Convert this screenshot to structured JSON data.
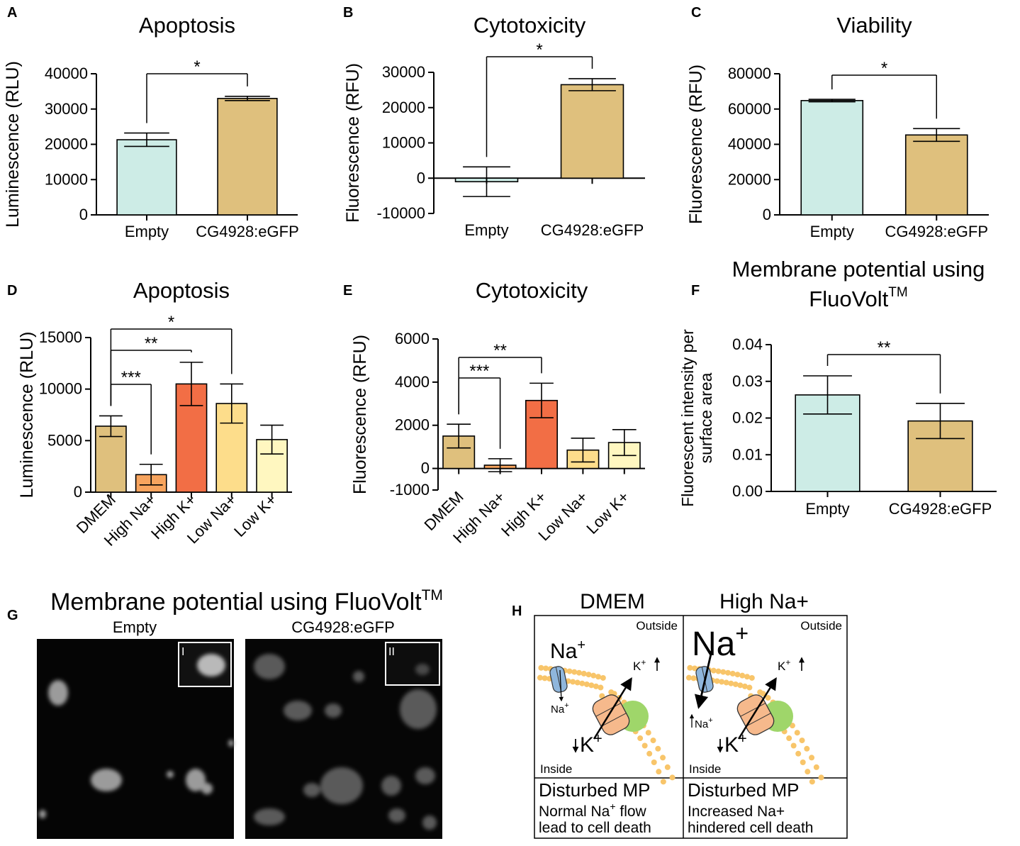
{
  "colors": {
    "empty": "#cdece6",
    "cg": "#dfc07d",
    "dmem": "#dfc07d",
    "high_na": "#f7a45e",
    "high_k": "#f26e45",
    "low_na": "#fddd8b",
    "low_k": "#fff7c0",
    "membrane": "#f8c56a",
    "transporter": "#f6b98c",
    "na_channel": "#8fb6dc",
    "green": "#9fd66a"
  },
  "chart_data": [
    {
      "panel": "A",
      "type": "bar",
      "title": "Apoptosis",
      "ylabel": "Luminescence (RLU)",
      "xlabel": "",
      "ylim": [
        0,
        40000
      ],
      "yticks": [
        0,
        10000,
        20000,
        30000,
        40000
      ],
      "categories": [
        "Empty",
        "CG4928:eGFP"
      ],
      "values": [
        21300,
        33000
      ],
      "errors": [
        1900,
        600
      ],
      "bar_colors": [
        "empty",
        "cg"
      ],
      "rotate_labels": false,
      "significance": [
        {
          "from": 0,
          "to": 1,
          "label": "*"
        }
      ]
    },
    {
      "panel": "B",
      "type": "bar",
      "title": "Cytotoxicity",
      "ylabel": "Fluorescence (RFU)",
      "xlabel": "",
      "ylim": [
        -10000,
        30000
      ],
      "yticks": [
        -10000,
        0,
        10000,
        20000,
        30000
      ],
      "categories": [
        "Empty",
        "CG4928:eGFP"
      ],
      "values": [
        -1000,
        26500
      ],
      "errors": [
        4200,
        1700
      ],
      "bar_colors": [
        "empty",
        "cg"
      ],
      "rotate_labels": false,
      "significance": [
        {
          "from": 0,
          "to": 1,
          "label": "*"
        }
      ]
    },
    {
      "panel": "C",
      "type": "bar",
      "title": "Viability",
      "ylabel": "Fluorescence (RFU)",
      "xlabel": "",
      "ylim": [
        0,
        80000
      ],
      "yticks": [
        0,
        20000,
        40000,
        60000,
        80000
      ],
      "categories": [
        "Empty",
        "CG4928:eGFP"
      ],
      "values": [
        64800,
        45300
      ],
      "errors": [
        700,
        3600
      ],
      "bar_colors": [
        "empty",
        "cg"
      ],
      "rotate_labels": false,
      "significance": [
        {
          "from": 0,
          "to": 1,
          "label": "*"
        }
      ]
    },
    {
      "panel": "D",
      "type": "bar",
      "title": "Apoptosis",
      "ylabel": "Luminescence (RLU)",
      "xlabel": "",
      "ylim": [
        0,
        15000
      ],
      "yticks": [
        0,
        5000,
        10000,
        15000
      ],
      "categories": [
        "DMEM",
        "High Na+",
        "High K+",
        "Low Na+",
        "Low K+"
      ],
      "values": [
        6400,
        1700,
        10500,
        8600,
        5100
      ],
      "errors": [
        1000,
        1000,
        2100,
        1900,
        1400
      ],
      "bar_colors": [
        "dmem",
        "high_na",
        "high_k",
        "low_na",
        "low_k"
      ],
      "rotate_labels": true,
      "significance": [
        {
          "from": 0,
          "to": 1,
          "label": "***"
        },
        {
          "from": 0,
          "to": 2,
          "label": "**"
        },
        {
          "from": 0,
          "to": 3,
          "label": "*"
        }
      ]
    },
    {
      "panel": "E",
      "type": "bar",
      "title": "Cytotoxicity",
      "ylabel": "Fluorescence (RFU)",
      "xlabel": "",
      "ylim": [
        -1000,
        6000
      ],
      "yticks": [
        -1000,
        0,
        2000,
        4000,
        6000
      ],
      "categories": [
        "DMEM",
        "High Na+",
        "High K+",
        "Low Na+",
        "Low K+"
      ],
      "values": [
        1500,
        150,
        3150,
        850,
        1200
      ],
      "errors": [
        550,
        300,
        800,
        550,
        600
      ],
      "bar_colors": [
        "dmem",
        "high_na",
        "high_k",
        "low_na",
        "low_k"
      ],
      "rotate_labels": true,
      "significance": [
        {
          "from": 0,
          "to": 1,
          "label": "***"
        },
        {
          "from": 0,
          "to": 2,
          "label": "**"
        }
      ]
    },
    {
      "panel": "F",
      "type": "bar",
      "title": "Membrane potential using FluoVolt",
      "title_lines": [
        "Membrane potential using",
        "FluoVolt"
      ],
      "title_sup": "TM",
      "ylabel": "Fluorescent intensity per surface area",
      "ylabel_lines": [
        "Fluorescent intensity per",
        "surface area"
      ],
      "xlabel": "",
      "ylim": [
        0,
        0.04
      ],
      "yticks": [
        "0.00",
        "0.01",
        "0.02",
        "0.03",
        "0.04"
      ],
      "categories": [
        "Empty",
        "CG4928:eGFP"
      ],
      "values": [
        0.0263,
        0.0192
      ],
      "errors": [
        0.0052,
        0.0048
      ],
      "bar_colors": [
        "empty",
        "cg"
      ],
      "rotate_labels": false,
      "significance": [
        {
          "from": 0,
          "to": 1,
          "label": "**"
        }
      ]
    }
  ],
  "panels": {
    "A": "A",
    "B": "B",
    "C": "C",
    "D": "D",
    "E": "E",
    "F": "F",
    "G": "G",
    "H": "H"
  },
  "micrograph": {
    "title": "Membrane potential using FluoVolt",
    "title_sup": "TM",
    "left_label": "Empty",
    "right_label": "CG4928:eGFP",
    "left_inset": "I",
    "right_inset": "II"
  },
  "schematic": {
    "left_header": "DMEM",
    "right_header": "High Na+",
    "outside_left": "Outside",
    "outside_right": "Outside",
    "inside_left": "Inside",
    "inside_right": "Inside",
    "na_big_left": "Na",
    "na_big_right": "Na",
    "na_small_left": "Na",
    "na_small_right": "Na",
    "k_up_left": "K",
    "k_up_right": "K",
    "k_down_left": "K",
    "k_down_right": "K",
    "plus": "+",
    "mp_left": "Disturbed MP",
    "mp_right": "Disturbed MP",
    "desc_left_line1": "Normal Na",
    "desc_left_line1b": " flow",
    "desc_left_line2": "lead to cell death",
    "desc_right_line1": "Increased Na+",
    "desc_right_line2": "hindered cell death"
  }
}
